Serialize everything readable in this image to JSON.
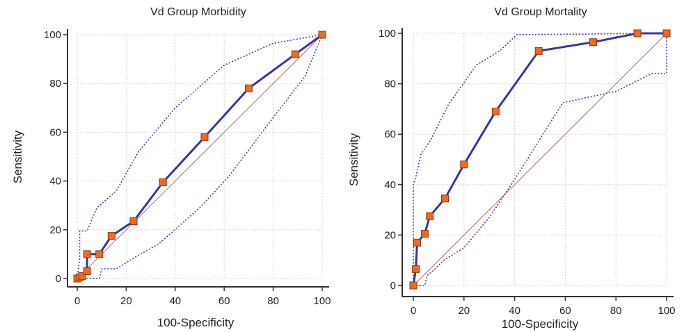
{
  "chart_data": [
    {
      "type": "line",
      "title": "Vd Group Morbidity",
      "xlabel": "100-Specificity",
      "ylabel": "Sensitivity",
      "xlim": [
        0,
        100
      ],
      "ylim": [
        0,
        100
      ],
      "xticks": [
        "0",
        "20",
        "40",
        "60",
        "80",
        "100"
      ],
      "yticks": [
        "0",
        "20",
        "40",
        "60",
        "80",
        "100"
      ],
      "grid": true,
      "diagonal": true,
      "series": [
        {
          "role": "roc",
          "x": [
            0,
            1,
            2,
            4,
            4,
            9,
            14,
            23,
            35,
            52,
            70,
            89,
            100
          ],
          "y": [
            0,
            0.5,
            1,
            3,
            10,
            10,
            17.5,
            23.5,
            39.5,
            58,
            78,
            92,
            100
          ],
          "markers": true
        },
        {
          "role": "ci-upper",
          "x": [
            0,
            1,
            1,
            4,
            8,
            16,
            25,
            40,
            60,
            80,
            100
          ],
          "y": [
            0,
            8,
            19.5,
            19.5,
            29,
            36,
            52,
            70,
            87.5,
            96.5,
            100
          ],
          "markers": false
        },
        {
          "role": "ci-lower",
          "x": [
            0,
            2,
            9,
            10,
            16,
            24,
            33,
            50,
            62,
            80,
            93,
            100
          ],
          "y": [
            0,
            0,
            0,
            4,
            4,
            9,
            14,
            29,
            42,
            66,
            83,
            100
          ],
          "markers": false
        }
      ]
    },
    {
      "type": "line",
      "title": "Vd Group Mortality",
      "xlabel": "100-Specificity",
      "ylabel": "Sensitivity",
      "xlim": [
        0,
        100
      ],
      "ylim": [
        0,
        100
      ],
      "xticks": [
        "0",
        "20",
        "40",
        "60",
        "80",
        "100"
      ],
      "yticks": [
        "0",
        "20",
        "40",
        "60",
        "80",
        "100"
      ],
      "grid": true,
      "diagonal": true,
      "series": [
        {
          "role": "roc",
          "x": [
            0,
            1,
            1.5,
            4.5,
            6.5,
            12.5,
            20,
            32.5,
            49.5,
            71,
            88.5,
            100
          ],
          "y": [
            0,
            6.5,
            17,
            20.5,
            27.5,
            34.5,
            48,
            69,
            93,
            96.5,
            100,
            100
          ],
          "markers": true
        },
        {
          "role": "ci-upper",
          "x": [
            0,
            0,
            1,
            3,
            7,
            14,
            25,
            34,
            41,
            60,
            90,
            100
          ],
          "y": [
            0,
            40,
            43,
            52,
            58,
            72,
            87.5,
            93,
            99.5,
            99.6,
            100,
            100
          ],
          "markers": false
        },
        {
          "role": "ci-lower",
          "x": [
            0,
            4.5,
            5.5,
            8,
            12,
            20,
            30,
            40,
            59,
            80,
            94,
            100,
            100
          ],
          "y": [
            0,
            0,
            4,
            6,
            10,
            15,
            27,
            42,
            72.5,
            77,
            84,
            84,
            100
          ],
          "markers": false
        }
      ]
    }
  ]
}
